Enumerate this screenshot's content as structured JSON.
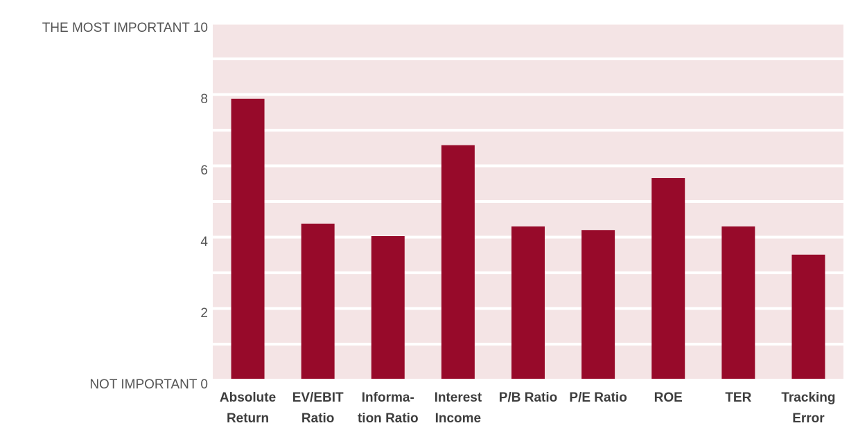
{
  "chart_data": {
    "type": "bar",
    "categories": [
      [
        "Absolute",
        "Return"
      ],
      [
        "EV/EBIT",
        "Ratio"
      ],
      [
        "Informa-",
        "tion Ratio"
      ],
      [
        "Interest",
        "Income"
      ],
      [
        "P/B Ratio"
      ],
      [
        "P/E Ratio"
      ],
      [
        "ROE"
      ],
      [
        "TER"
      ],
      [
        "Tracking",
        "Error"
      ]
    ],
    "values": [
      7.85,
      4.35,
      4.0,
      6.55,
      4.27,
      4.17,
      5.63,
      4.27,
      3.48
    ],
    "ylim": [
      0,
      10
    ],
    "yticks": [
      0,
      2,
      4,
      6,
      8,
      10
    ],
    "y_tick_prefix": {
      "0": "NOT IMPORTANT",
      "10": "THE MOST IMPORTANT"
    },
    "grid": true,
    "legend": "none",
    "colors": {
      "bar": "#970a2a",
      "plot_bg": "#f4e4e5",
      "grid": "#ffffff"
    }
  }
}
